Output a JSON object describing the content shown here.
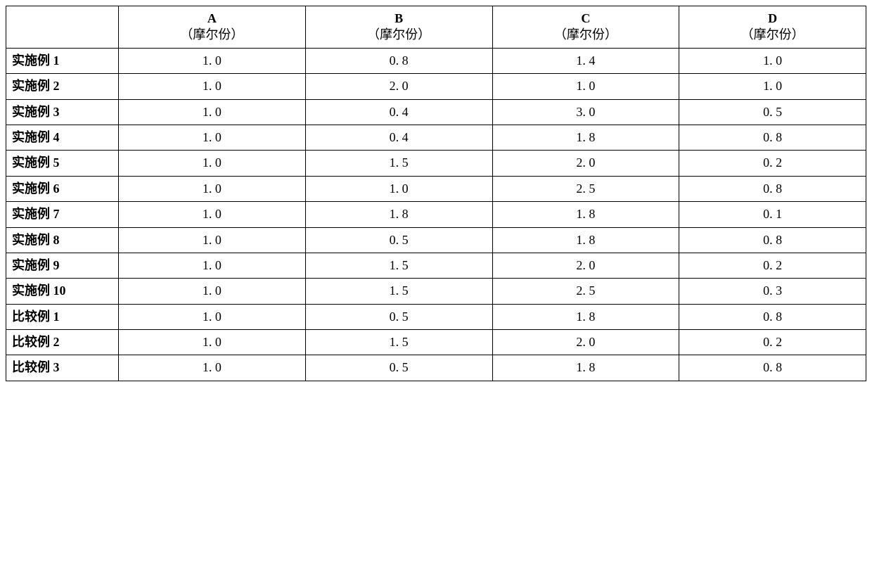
{
  "table": {
    "headers": [
      {
        "letter": "A",
        "unit": "（摩尔份）"
      },
      {
        "letter": "B",
        "unit": "（摩尔份）"
      },
      {
        "letter": "C",
        "unit": "（摩尔份）"
      },
      {
        "letter": "D",
        "unit": "（摩尔份）"
      }
    ],
    "rows": [
      {
        "label": "实施例 1",
        "a": "1. 0",
        "b": "0. 8",
        "c": "1. 4",
        "d": "1. 0"
      },
      {
        "label": "实施例 2",
        "a": "1. 0",
        "b": "2. 0",
        "c": "1. 0",
        "d": "1. 0"
      },
      {
        "label": "实施例 3",
        "a": "1. 0",
        "b": "0. 4",
        "c": "3. 0",
        "d": "0. 5"
      },
      {
        "label": "实施例 4",
        "a": "1. 0",
        "b": "0. 4",
        "c": "1. 8",
        "d": "0. 8"
      },
      {
        "label": "实施例 5",
        "a": "1. 0",
        "b": "1. 5",
        "c": "2. 0",
        "d": "0. 2"
      },
      {
        "label": "实施例 6",
        "a": "1. 0",
        "b": "1. 0",
        "c": "2. 5",
        "d": "0. 8"
      },
      {
        "label": "实施例 7",
        "a": "1. 0",
        "b": "1. 8",
        "c": "1. 8",
        "d": "0. 1"
      },
      {
        "label": "实施例 8",
        "a": "1. 0",
        "b": "0. 5",
        "c": "1. 8",
        "d": "0. 8"
      },
      {
        "label": "实施例 9",
        "a": "1. 0",
        "b": "1. 5",
        "c": "2. 0",
        "d": "0. 2"
      },
      {
        "label": "实施例 10",
        "a": "1. 0",
        "b": "1. 5",
        "c": "2. 5",
        "d": "0. 3"
      },
      {
        "label": "比较例 1",
        "a": "1. 0",
        "b": "0. 5",
        "c": "1. 8",
        "d": "0. 8"
      },
      {
        "label": "比较例 2",
        "a": "1. 0",
        "b": "1. 5",
        "c": "2. 0",
        "d": "0. 2"
      },
      {
        "label": "比较例 3",
        "a": "1. 0",
        "b": "0. 5",
        "c": "1. 8",
        "d": "0. 8"
      }
    ]
  }
}
